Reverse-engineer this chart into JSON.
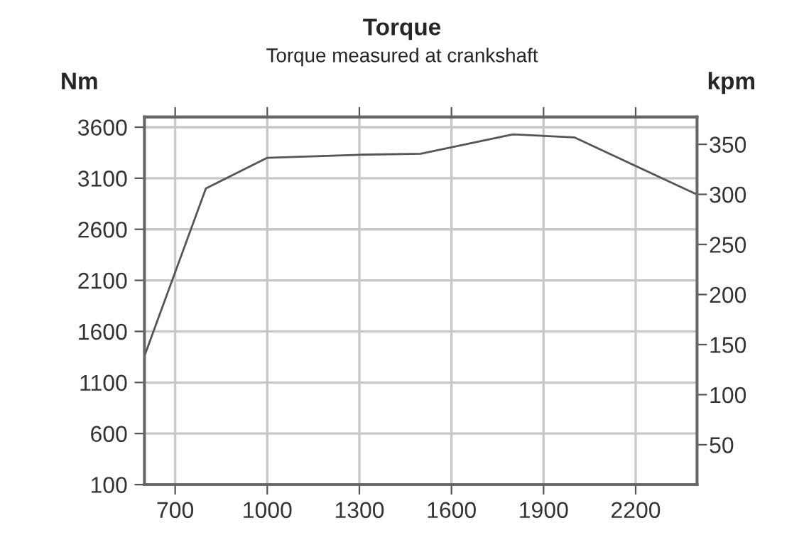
{
  "chart_data": {
    "type": "line",
    "title": "Torque",
    "subtitle": "Torque measured at crankshaft",
    "ylabel": "Nm",
    "y2label": "kpm",
    "x": [
      600,
      800,
      1000,
      1300,
      1500,
      1800,
      2000,
      2400
    ],
    "series": [
      {
        "color": "#555555",
        "values": [
          1360,
          3000,
          3300,
          3330,
          3340,
          3530,
          3500,
          2940
        ]
      }
    ],
    "xlim": [
      600,
      2400
    ],
    "xticks": [
      700,
      1000,
      1300,
      1600,
      1900,
      2200
    ],
    "ylim": [
      100,
      3700
    ],
    "yticks": [
      100,
      600,
      1100,
      1600,
      2100,
      2600,
      3100,
      3600
    ],
    "y2lim": [
      10.2,
      377.3
    ],
    "y2ticks": [
      50,
      100,
      150,
      200,
      250,
      300,
      350
    ],
    "grid": true,
    "marker": "none",
    "line_style": "solid"
  }
}
